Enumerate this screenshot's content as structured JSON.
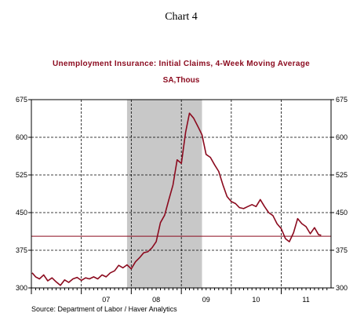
{
  "page": {
    "chart_number": "Chart 4",
    "source": "Source:  Department of Labor / Haver Analytics"
  },
  "colors": {
    "series": "#8b0a1e",
    "title": "#8b0a1e",
    "recession_shade": "#c8c8c8",
    "grid": "#000000"
  },
  "chart_data": {
    "type": "line",
    "title": "Unemployment Insurance: Initial Claims, 4-Week Moving Average",
    "subtitle": "SA,Thous",
    "xlabel": "",
    "ylabel": "",
    "ylim": [
      300,
      675
    ],
    "yticks": [
      300,
      375,
      450,
      525,
      600,
      675
    ],
    "y_axis_sides": [
      "left",
      "right"
    ],
    "xlim": [
      "2006-01-01",
      "2011-12-31"
    ],
    "x_tick_labels": [
      "07",
      "08",
      "09",
      "10",
      "11"
    ],
    "x_tick_label_dates": [
      "2007-07-01",
      "2008-07-01",
      "2009-07-01",
      "2010-07-01",
      "2011-07-01"
    ],
    "vertical_gridlines": [
      "2007-01-01",
      "2008-01-01",
      "2009-01-01",
      "2010-01-01",
      "2011-01-01"
    ],
    "horizontal_gridlines": [
      375,
      450,
      525,
      600
    ],
    "grid": true,
    "grid_style": "dashed",
    "recession_band": {
      "start": "2007-12-01",
      "end": "2009-06-01"
    },
    "reference_line": {
      "y": 403
    },
    "series": [
      {
        "x": [
          "2006-01-07",
          "2006-02-01",
          "2006-03-01",
          "2006-04-01",
          "2006-05-01",
          "2006-06-01",
          "2006-07-01",
          "2006-08-01",
          "2006-09-01",
          "2006-10-01",
          "2006-11-01",
          "2006-12-01",
          "2007-01-01",
          "2007-02-01",
          "2007-03-01",
          "2007-04-01",
          "2007-05-01",
          "2007-06-01",
          "2007-07-01",
          "2007-08-01",
          "2007-09-01",
          "2007-10-01",
          "2007-11-01",
          "2007-12-01",
          "2008-01-01",
          "2008-02-01",
          "2008-03-01",
          "2008-04-01",
          "2008-05-01",
          "2008-06-01",
          "2008-07-01",
          "2008-08-01",
          "2008-09-01",
          "2008-10-01",
          "2008-11-01",
          "2008-12-01",
          "2009-01-01",
          "2009-02-01",
          "2009-03-01",
          "2009-04-01",
          "2009-05-01",
          "2009-06-01",
          "2009-07-01",
          "2009-08-01",
          "2009-09-01",
          "2009-10-01",
          "2009-11-01",
          "2009-12-01",
          "2010-01-01",
          "2010-02-01",
          "2010-03-01",
          "2010-04-01",
          "2010-05-01",
          "2010-06-01",
          "2010-07-01",
          "2010-08-01",
          "2010-09-01",
          "2010-10-01",
          "2010-11-01",
          "2010-12-01",
          "2011-01-01",
          "2011-02-01",
          "2011-03-01",
          "2011-04-01",
          "2011-05-01",
          "2011-06-01",
          "2011-07-01",
          "2011-08-01",
          "2011-09-01",
          "2011-10-01",
          "2011-10-20"
        ],
        "values": [
          330,
          322,
          318,
          326,
          314,
          320,
          312,
          305,
          316,
          311,
          318,
          321,
          315,
          320,
          318,
          322,
          318,
          326,
          322,
          330,
          334,
          345,
          340,
          346,
          338,
          352,
          360,
          370,
          372,
          380,
          392,
          430,
          445,
          475,
          505,
          555,
          548,
          610,
          648,
          638,
          622,
          605,
          566,
          560,
          545,
          532,
          505,
          482,
          472,
          468,
          460,
          458,
          462,
          466,
          462,
          476,
          462,
          450,
          444,
          428,
          418,
          398,
          392,
          410,
          438,
          428,
          422,
          408,
          420,
          406,
          405
        ]
      }
    ]
  }
}
